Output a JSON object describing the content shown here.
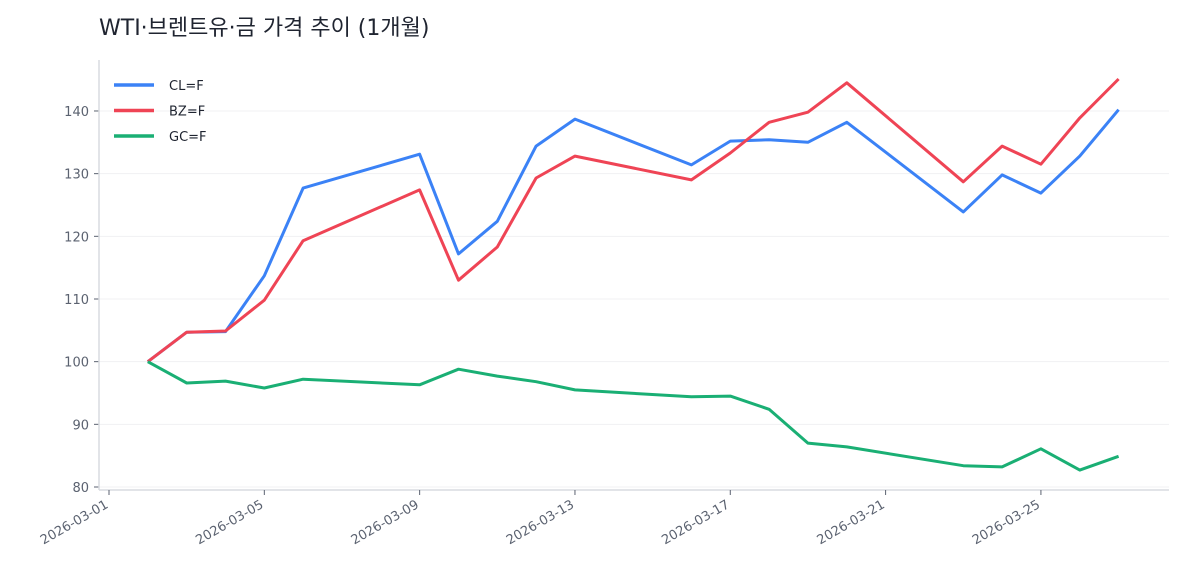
{
  "chart_data": {
    "type": "line",
    "title": "WTI·브렌트유·금 가격 추이 (1개월)",
    "xlabel": "",
    "ylabel": "",
    "x": [
      "2026-03-02",
      "2026-03-03",
      "2026-03-04",
      "2026-03-05",
      "2026-03-06",
      "2026-03-09",
      "2026-03-10",
      "2026-03-11",
      "2026-03-12",
      "2026-03-13",
      "2026-03-16",
      "2026-03-17",
      "2026-03-18",
      "2026-03-19",
      "2026-03-20",
      "2026-03-23",
      "2026-03-24",
      "2026-03-25",
      "2026-03-26",
      "2026-03-27"
    ],
    "series": [
      {
        "name": "CL=F",
        "color": "#3b82f6",
        "values": [
          100,
          104.7,
          104.8,
          113.7,
          127.7,
          133.1,
          117.2,
          122.4,
          134.4,
          138.7,
          131.4,
          135.2,
          135.4,
          135.0,
          138.2,
          123.9,
          129.8,
          126.9,
          132.8,
          140.2
        ]
      },
      {
        "name": "BZ=F",
        "color": "#ef4455",
        "values": [
          100,
          104.7,
          104.9,
          109.8,
          119.3,
          127.4,
          113.0,
          118.3,
          129.3,
          132.8,
          129.0,
          133.3,
          138.2,
          139.8,
          144.5,
          128.7,
          134.4,
          131.5,
          138.9,
          145.1
        ]
      },
      {
        "name": "GC=F",
        "color": "#1aaf74",
        "values": [
          100,
          96.6,
          96.9,
          95.8,
          97.2,
          96.3,
          98.8,
          97.7,
          96.8,
          95.5,
          94.4,
          94.5,
          92.4,
          87.0,
          86.4,
          83.4,
          83.2,
          86.1,
          82.7,
          84.9
        ]
      }
    ],
    "xticks": [
      "2026-03-01",
      "2026-03-05",
      "2026-03-09",
      "2026-03-13",
      "2026-03-17",
      "2026-03-21",
      "2026-03-25"
    ],
    "yticks": [
      80,
      90,
      100,
      110,
      120,
      130,
      140
    ],
    "ylim": [
      79.5,
      148
    ],
    "xlim": [
      "2026-02-29.75",
      "2026-03-28.5"
    ],
    "grid": "horizontal",
    "legend": "top-left"
  }
}
